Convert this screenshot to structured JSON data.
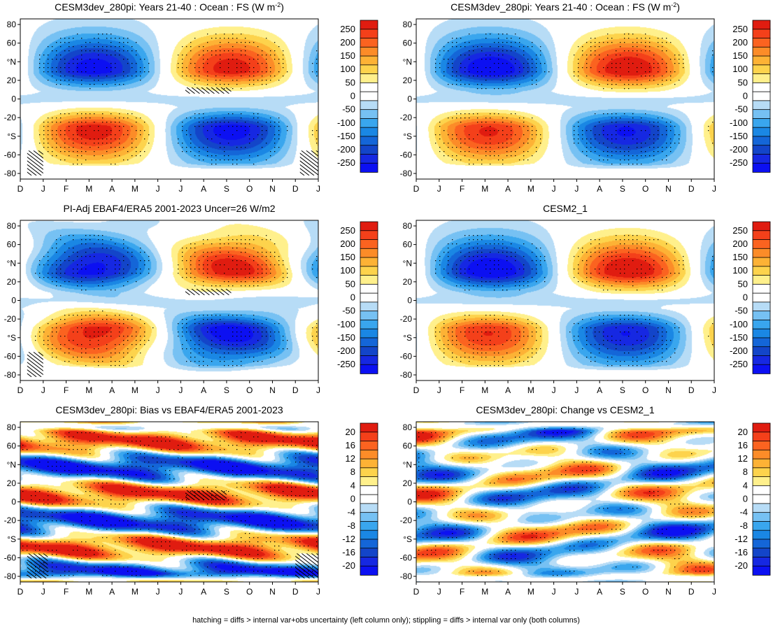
{
  "figure": {
    "footer": "hatching = diffs > internal var+obs uncertainty (left column only); stippling = diffs > internal var only (both columns)"
  },
  "colorbars": {
    "full": {
      "labels": [
        "250",
        "200",
        "150",
        "100",
        "50",
        "0",
        "-50",
        "-100",
        "-150",
        "-200",
        "-250"
      ],
      "colors": [
        "#e01c10",
        "#f4401a",
        "#fb6320",
        "#fc8c28",
        "#fdb235",
        "#fdd34c",
        "#fff08c",
        "#ffffff",
        "#ffffff",
        "#b7dcf6",
        "#76c1f3",
        "#39a6ee",
        "#1a87e4",
        "#1466d8",
        "#1345c9",
        "#1628e2",
        "#0c10f2"
      ]
    },
    "diff": {
      "labels": [
        "20",
        "16",
        "12",
        "8",
        "4",
        "0",
        "-4",
        "-8",
        "-12",
        "-16",
        "-20"
      ],
      "colors": [
        "#e01c10",
        "#f4401a",
        "#fb6320",
        "#fc8c28",
        "#fdb235",
        "#fdd34c",
        "#fff08c",
        "#ffffff",
        "#ffffff",
        "#b7dcf6",
        "#76c1f3",
        "#39a6ee",
        "#1a87e4",
        "#1466d8",
        "#1345c9",
        "#1628e2",
        "#0c10f2"
      ]
    }
  },
  "chart_data": [
    {
      "type": "heatmap",
      "title": "CESM3dev_280pi: Years 21-40 : Ocean : FS (W m",
      "title_sup": "-2",
      "title_end": ")",
      "variable": "FS",
      "units": "W m-2",
      "x_ticks": [
        "D",
        "J",
        "F",
        "M",
        "A",
        "M",
        "J",
        "J",
        "A",
        "S",
        "O",
        "N",
        "D",
        "J"
      ],
      "y_ticks": [
        "80",
        "60",
        "°N",
        "20",
        "0",
        "-20",
        "°S",
        "-60",
        "-80"
      ],
      "y_range": [
        -90,
        90
      ],
      "colorbar": "full",
      "hatching": [
        {
          "x": [
            0.3,
            1.0
          ],
          "y": [
            -86,
            -58
          ]
        },
        {
          "x": [
            7.2,
            9.2
          ],
          "y": [
            6,
            13
          ]
        },
        {
          "x": [
            12.2,
            13.0
          ],
          "y": [
            -86,
            -58
          ]
        }
      ]
    },
    {
      "type": "heatmap",
      "title": "CESM3dev_280pi: Years 21-40 : Ocean : FS (W m",
      "title_sup": "-2",
      "title_end": ")",
      "variable": "FS",
      "units": "W m-2",
      "x_ticks": [
        "D",
        "J",
        "F",
        "M",
        "A",
        "M",
        "J",
        "J",
        "A",
        "S",
        "O",
        "N",
        "D",
        "J"
      ],
      "y_ticks": [
        "80",
        "60",
        "°N",
        "20",
        "0",
        "-20",
        "°S",
        "-60",
        "-80"
      ],
      "y_range": [
        -90,
        90
      ],
      "colorbar": "full",
      "hatching": []
    },
    {
      "type": "heatmap",
      "title": "PI-Adj EBAF4/ERA5 2001-2023 Uncer=26 W/m2",
      "title_sup": "",
      "title_end": "",
      "variable": "FS",
      "units": "W m-2",
      "uncertainty": 26,
      "x_ticks": [
        "D",
        "J",
        "F",
        "M",
        "A",
        "M",
        "J",
        "J",
        "A",
        "S",
        "O",
        "N",
        "D",
        "J"
      ],
      "y_ticks": [
        "80",
        "60",
        "°N",
        "20",
        "0",
        "-20",
        "°S",
        "-60",
        "-80"
      ],
      "y_range": [
        -90,
        90
      ],
      "colorbar": "full",
      "hatching": [
        {
          "x": [
            0.3,
            1.0
          ],
          "y": [
            -86,
            -58
          ]
        },
        {
          "x": [
            7.2,
            9.2
          ],
          "y": [
            6,
            13
          ]
        }
      ]
    },
    {
      "type": "heatmap",
      "title": "CESM2_1",
      "title_sup": "",
      "title_end": "",
      "variable": "FS",
      "units": "W m-2",
      "x_ticks": [
        "D",
        "J",
        "F",
        "M",
        "A",
        "M",
        "J",
        "J",
        "A",
        "S",
        "O",
        "N",
        "D",
        "J"
      ],
      "y_ticks": [
        "80",
        "60",
        "°N",
        "20",
        "0",
        "-20",
        "°S",
        "-60",
        "-80"
      ],
      "y_range": [
        -90,
        90
      ],
      "colorbar": "full",
      "hatching": []
    },
    {
      "type": "heatmap",
      "title": "CESM3dev_280pi: Bias vs EBAF4/ERA5 2001-2023",
      "title_sup": "",
      "title_end": "",
      "variable": "FS difference",
      "units": "W m-2",
      "x_ticks": [
        "D",
        "J",
        "F",
        "M",
        "A",
        "M",
        "J",
        "J",
        "A",
        "S",
        "O",
        "N",
        "D",
        "J"
      ],
      "y_ticks": [
        "80",
        "60",
        "°N",
        "20",
        "0",
        "-20",
        "°S",
        "-60",
        "-80"
      ],
      "y_range": [
        -90,
        90
      ],
      "colorbar": "diff",
      "hatching": [
        {
          "x": [
            0.3,
            1.2
          ],
          "y": [
            -86,
            -58
          ]
        },
        {
          "x": [
            7.2,
            9.0
          ],
          "y": [
            2,
            13
          ]
        },
        {
          "x": [
            12.0,
            13.0
          ],
          "y": [
            -86,
            -58
          ]
        }
      ]
    },
    {
      "type": "heatmap",
      "title": "CESM3dev_280pi: Change vs CESM2_1",
      "title_sup": "",
      "title_end": "",
      "variable": "FS difference",
      "units": "W m-2",
      "x_ticks": [
        "D",
        "J",
        "F",
        "M",
        "A",
        "M",
        "J",
        "J",
        "A",
        "S",
        "O",
        "N",
        "D",
        "J"
      ],
      "y_ticks": [
        "80",
        "60",
        "°N",
        "20",
        "0",
        "-20",
        "°S",
        "-60",
        "-80"
      ],
      "y_range": [
        -90,
        90
      ],
      "colorbar": "diff",
      "hatching": []
    }
  ]
}
